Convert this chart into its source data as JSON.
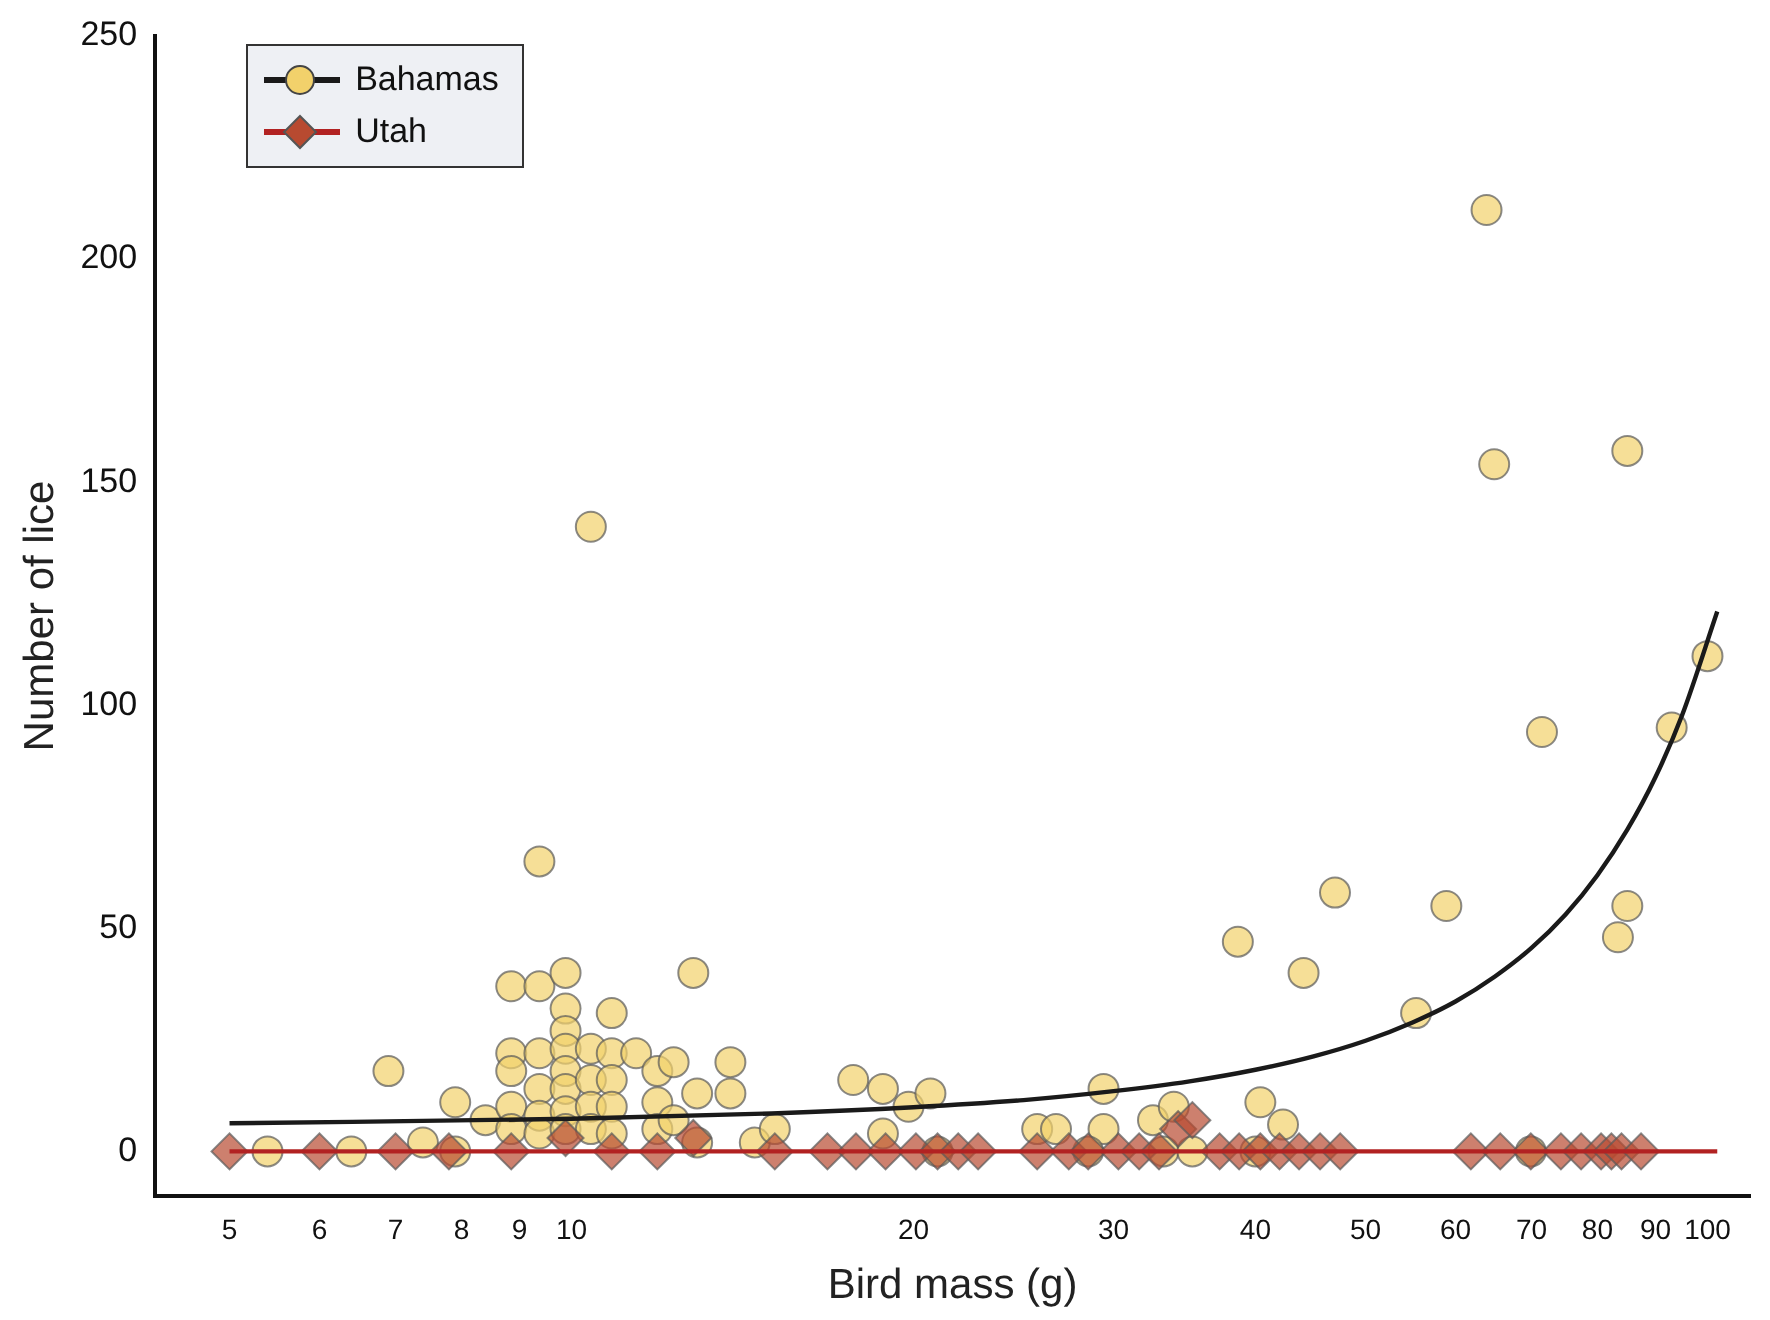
{
  "chart_data": {
    "type": "scatter",
    "xlabel": "Bird mass (g)",
    "ylabel": "Number of lice",
    "log": "x",
    "grid": false,
    "legend": "top left",
    "xlim": [
      4.3,
      109
    ],
    "xticks": [
      5,
      6,
      7,
      8,
      9,
      10,
      20,
      30,
      40,
      50,
      60,
      70,
      80,
      90,
      100
    ],
    "ylim": [
      -10,
      250
    ],
    "yticks": [
      0,
      50,
      100,
      150,
      200,
      250
    ],
    "series": [
      {
        "name": "Bahamas",
        "marker": "circle",
        "color": "#f2d16b",
        "x": [
          6.9,
          5.4,
          6.4,
          7.4,
          7.9,
          7.9,
          8.4,
          8.85,
          8.85,
          8.85,
          8.85,
          8.85,
          9.37,
          9.37,
          9.37,
          9.37,
          9.37,
          9.37,
          9.88,
          9.88,
          9.88,
          9.88,
          9.88,
          9.88,
          9.88,
          9.88,
          10.4,
          10.4,
          10.4,
          10.4,
          10.4,
          10.85,
          10.85,
          10.85,
          10.85,
          10.85,
          11.4,
          11.9,
          11.9,
          11.9,
          12.3,
          12.3,
          12.8,
          12.9,
          13.8,
          13.8,
          12.9,
          14.5,
          15.1,
          17.7,
          18.8,
          18.8,
          19.8,
          20.7,
          21,
          25.7,
          26.7,
          29.4,
          29.4,
          28.5,
          32.5,
          33.9,
          33.2,
          35.2,
          38.6,
          40.4,
          42.3,
          44.1,
          47,
          55.4,
          58.9,
          63.9,
          64.9,
          71.5,
          85,
          85,
          83.4,
          93,
          100,
          40,
          69.9
        ],
        "values": [
          18,
          0,
          0,
          2,
          0,
          11,
          7,
          37,
          22,
          18,
          10,
          5,
          37,
          65,
          22,
          14,
          8,
          4,
          40,
          32,
          27,
          23,
          18,
          14,
          9,
          5,
          140,
          23,
          16,
          10,
          5,
          31,
          22,
          16,
          10,
          4,
          22,
          18,
          11,
          5,
          20,
          7,
          40,
          13,
          20,
          13,
          2,
          2,
          5,
          16,
          14,
          4,
          10,
          13,
          0,
          5,
          5,
          14,
          5,
          0,
          7,
          10,
          0,
          0,
          47,
          11,
          6,
          40,
          58,
          31,
          55,
          211,
          154,
          94,
          157,
          55,
          48,
          95,
          111,
          0,
          0
        ]
      },
      {
        "name": "Utah",
        "marker": "diamond",
        "color": "#b84a30",
        "x": [
          5,
          6,
          7,
          7.8,
          8.85,
          9.88,
          10.85,
          11.9,
          12.8,
          15.1,
          16.8,
          17.8,
          18.9,
          20.1,
          21,
          21.9,
          22.8,
          25.7,
          27.4,
          28.5,
          30.3,
          31.6,
          32.9,
          34.2,
          35.2,
          37.2,
          38.7,
          40.4,
          42,
          43.7,
          45.6,
          47.5,
          61.9,
          65.7,
          69.9,
          74.3,
          77.4,
          80.6,
          82.3,
          84,
          87.4
        ],
        "values": [
          0,
          0,
          0,
          0,
          0,
          3,
          0,
          0,
          3,
          0,
          0,
          0,
          0,
          0,
          0,
          0,
          0,
          0,
          0,
          0,
          0,
          0,
          0,
          5,
          7,
          0,
          0,
          0,
          0,
          0,
          0,
          0,
          0,
          0,
          0,
          0,
          0,
          0,
          0,
          0,
          0
        ]
      },
      {
        "type": "line",
        "marker": "none",
        "color": "#1a1a1a",
        "x": [
          5,
          10,
          15,
          20,
          25,
          30,
          35,
          40,
          45,
          50,
          55,
          60,
          65,
          70,
          75,
          80,
          85,
          90,
          95,
          102
        ],
        "values": [
          6.3,
          7.3,
          8.5,
          9.9,
          11.5,
          13.5,
          15.7,
          18.3,
          21.3,
          24.8,
          28.9,
          33.6,
          39.2,
          45.6,
          53.1,
          61.9,
          72.1,
          83.9,
          97.8,
          121
        ]
      },
      {
        "type": "line",
        "marker": "none",
        "color": "#b22222",
        "x": [
          5,
          102
        ],
        "values": [
          0,
          0
        ]
      }
    ]
  }
}
